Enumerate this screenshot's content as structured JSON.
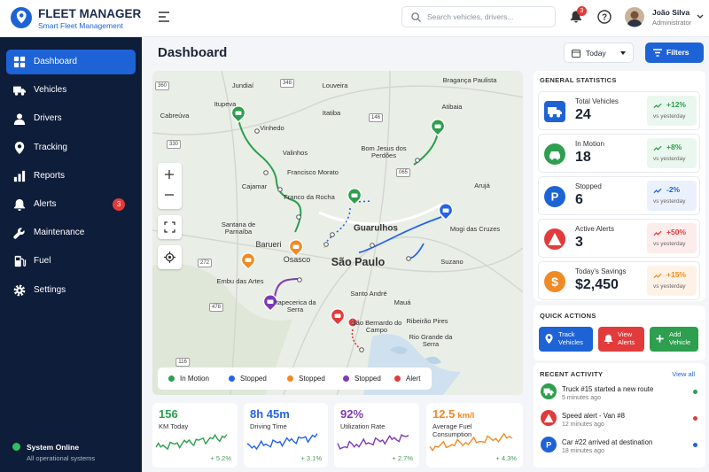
{
  "brand": {
    "title": "FLEET MANAGER",
    "subtitle": "Smart Fleet Management"
  },
  "nav": [
    {
      "label": "Dashboard"
    },
    {
      "label": "Vehicles"
    },
    {
      "label": "Drivers"
    },
    {
      "label": "Tracking"
    },
    {
      "label": "Reports"
    },
    {
      "label": "Alerts",
      "badge": "3"
    },
    {
      "label": "Maintenance"
    },
    {
      "label": "Fuel"
    },
    {
      "label": "Settings"
    }
  ],
  "status": {
    "title": "System Online",
    "subtitle": "All operational systems"
  },
  "topbar": {
    "search": "Search vehicles, drivers...",
    "notifications": "3",
    "user": {
      "name": "João Silva",
      "role": "Administrator"
    }
  },
  "header": {
    "title": "Dashboard",
    "period": "Today",
    "filters": "Filters"
  },
  "map": {
    "places": [
      "Jundiaí",
      "Louveira",
      "Bragança Paulista",
      "Itupeva",
      "Cabreúva",
      "Vinhedo",
      "Itatiba",
      "Atibaia",
      "Valinhos",
      "Bom Jesus dos Perdões",
      "Francisco Morato",
      "Cajamar",
      "Franco da Rocha",
      "Arujá",
      "Guarulhos",
      "Mogi das Cruzes",
      "Santana de Parnaíba",
      "Barueri",
      "Osasco",
      "São Paulo",
      "Suzano",
      "Embu das Artes",
      "Santo André",
      "Mauá",
      "Itapecerica da Serra",
      "São Bernardo do Campo",
      "Ribeirão Pires",
      "Rio Grande da Serra"
    ],
    "roads": [
      "360",
      "348",
      "146",
      "330",
      "065",
      "272",
      "478",
      "116"
    ],
    "legend": [
      {
        "label": "In Motion",
        "color": "#2e9e4f"
      },
      {
        "label": "Stopped",
        "color": "#2563eb"
      },
      {
        "label": "Stopped",
        "color": "#f08a24"
      },
      {
        "label": "Stopped",
        "color": "#7e3ab5"
      },
      {
        "label": "Alert",
        "color": "#e23b3b"
      }
    ]
  },
  "kpis": [
    {
      "value": "156",
      "label": "KM Today",
      "change": "+ 5.2%",
      "color": "#2e9e4f"
    },
    {
      "value": "8h 45m",
      "label": "Driving Time",
      "change": "+ 3.1%",
      "color": "#2563eb"
    },
    {
      "value": "92%",
      "label": "Utilization Rate",
      "change": "+ 2.7%",
      "color": "#7e3ab5"
    },
    {
      "value": "12.5",
      "unit": "km/l",
      "label": "Average Fuel Consumption",
      "change": "+ 4.3%",
      "color": "#f08a24"
    }
  ],
  "stats": {
    "title": "GENERAL STATISTICS",
    "items": [
      {
        "label": "Total Vehicles",
        "value": "24",
        "change": "+12%",
        "note": "vs yesterday"
      },
      {
        "label": "In Motion",
        "value": "18",
        "change": "+8%",
        "note": "vs yesterday"
      },
      {
        "label": "Stopped",
        "value": "6",
        "change": "-2%",
        "note": "vs yesterday"
      },
      {
        "label": "Active Alerts",
        "value": "3",
        "change": "+50%",
        "note": "vs yesterday"
      },
      {
        "label": "Today's Savings",
        "value": "$2,450",
        "change": "+15%",
        "note": "vs yesterday"
      }
    ]
  },
  "quick_actions": {
    "title": "QUICK ACTIONS",
    "buttons": [
      "Track Vehicles",
      "View Alerts",
      "Add Vehicle"
    ]
  },
  "recent": {
    "title": "RECENT ACTIVITY",
    "link": "View all",
    "items": [
      {
        "text": "Truck #15 started a new route",
        "time": "5 minutes ago"
      },
      {
        "text": "Speed alert - Van #8",
        "time": "12 minutes ago"
      },
      {
        "text": "Car #22 arrived at destination",
        "time": "18 minutes ago"
      }
    ]
  }
}
